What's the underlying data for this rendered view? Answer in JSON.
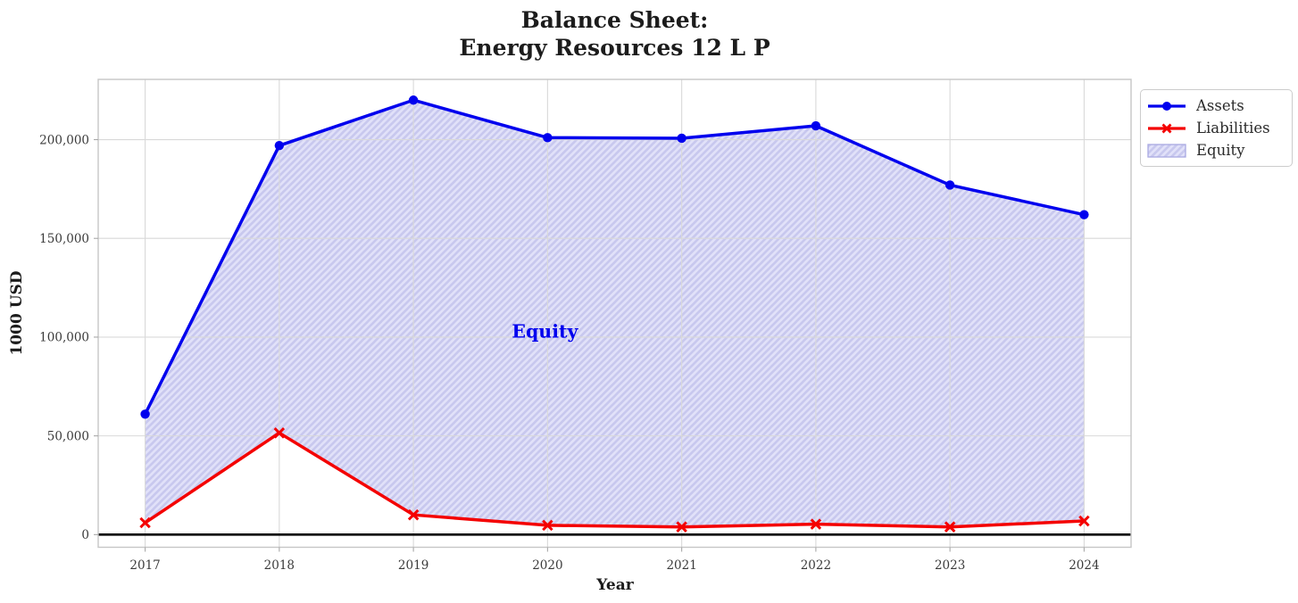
{
  "page": {
    "title_line1": "Balance Sheet:",
    "title_line2": "Energy Resources 12 L P",
    "xlabel": "Year",
    "ylabel": "1000 USD"
  },
  "legend": {
    "items": [
      {
        "label": "Assets",
        "icon": "line-circle",
        "series": "Assets"
      },
      {
        "label": "Liabilities",
        "icon": "line-x",
        "series": "Liabilities"
      },
      {
        "label": "Equity",
        "icon": "hatch-patch",
        "series": "Equity"
      }
    ]
  },
  "chart_data": {
    "type": "line",
    "title": "Balance Sheet: Energy Resources 12 L P",
    "xlabel": "Year",
    "ylabel": "1000 USD",
    "x": [
      2017,
      2018,
      2019,
      2020,
      2021,
      2022,
      2023,
      2024
    ],
    "x_tick_labels": [
      "2017",
      "2018",
      "2019",
      "2020",
      "2021",
      "2022",
      "2023",
      "2024"
    ],
    "series": [
      {
        "name": "Assets",
        "color": "#0000ee",
        "marker": "circle",
        "values": [
          61000,
          197000,
          220000,
          201000,
          200700,
          207000,
          177000,
          162000
        ]
      },
      {
        "name": "Liabilities",
        "color": "#f40000",
        "marker": "x",
        "values": [
          6000,
          51500,
          10000,
          4700,
          3900,
          5300,
          3900,
          6900
        ]
      }
    ],
    "area_between": {
      "name": "Equity",
      "upper": "Assets",
      "lower": "Liabilities",
      "face_color": "#e1e1f9",
      "hatch_color": "#c8c8ee",
      "edge_color": "#a9a9e2",
      "annotation": {
        "text": "Equity",
        "x": 2019.98,
        "y": 103000,
        "color": "#0000ee"
      }
    },
    "yticks": [
      {
        "value": 0,
        "label": "0"
      },
      {
        "value": 50000,
        "label": "50,000"
      },
      {
        "value": 100000,
        "label": "100,000"
      },
      {
        "value": 150000,
        "label": "150,000"
      },
      {
        "value": 200000,
        "label": "200,000"
      }
    ],
    "xlim": [
      2016.65,
      2024.35
    ],
    "ylim": [
      -6400,
      230500
    ],
    "zero_line": {
      "value": 0,
      "color": "#000000"
    },
    "grid": true,
    "legend_position": "outside-upper-right"
  }
}
